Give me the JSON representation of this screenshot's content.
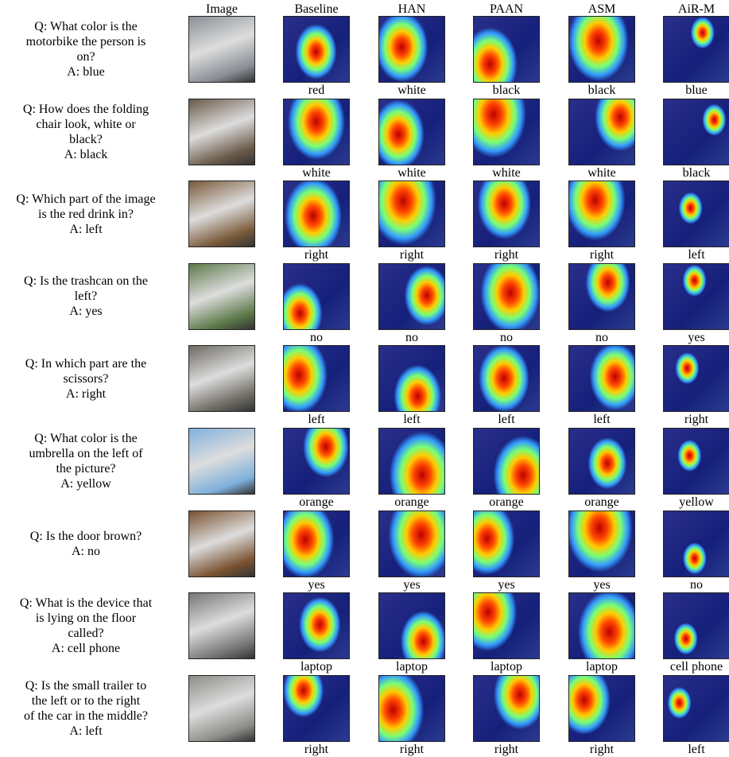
{
  "header": {
    "columns": [
      "Image",
      "Baseline",
      "HAN",
      "PAAN",
      "ASM",
      "AiR-M"
    ]
  },
  "rows": [
    {
      "question_lines": [
        "Q: What color is the",
        "motorbike the person is",
        "on?"
      ],
      "answer": "A: blue",
      "predictions": [
        "red",
        "white",
        "black",
        "black",
        "blue"
      ]
    },
    {
      "question_lines": [
        "Q: How does the folding",
        "chair look, white or",
        "black?"
      ],
      "answer": "A: black",
      "predictions": [
        "white",
        "white",
        "white",
        "white",
        "black"
      ]
    },
    {
      "question_lines": [
        "Q: Which part of the image",
        "is the red drink in?"
      ],
      "answer": "A: left",
      "predictions": [
        "right",
        "right",
        "right",
        "right",
        "left"
      ]
    },
    {
      "question_lines": [
        "Q: Is the trashcan on the",
        "left?"
      ],
      "answer": "A: yes",
      "predictions": [
        "no",
        "no",
        "no",
        "no",
        "yes"
      ]
    },
    {
      "question_lines": [
        "Q: In which part are the",
        "scissors?"
      ],
      "answer": "A: right",
      "predictions": [
        "left",
        "left",
        "left",
        "left",
        "right"
      ]
    },
    {
      "question_lines": [
        "Q: What color is the",
        "umbrella on the left of",
        "the picture?"
      ],
      "answer": "A: yellow",
      "predictions": [
        "orange",
        "orange",
        "orange",
        "orange",
        "yellow"
      ]
    },
    {
      "question_lines": [
        "Q: Is the door brown?"
      ],
      "answer": "A: no",
      "predictions": [
        "yes",
        "yes",
        "yes",
        "yes",
        "no"
      ]
    },
    {
      "question_lines": [
        "Q: What is the device that",
        "is lying on the floor",
        "called?"
      ],
      "answer": "A: cell phone",
      "predictions": [
        "laptop",
        "laptop",
        "laptop",
        "laptop",
        "cell phone"
      ]
    },
    {
      "question_lines": [
        "Q: Is the small trailer to",
        "the left or to the right",
        "of the car in the middle?"
      ],
      "answer": "A: left",
      "predictions": [
        "right",
        "right",
        "right",
        "right",
        "left"
      ]
    }
  ]
}
